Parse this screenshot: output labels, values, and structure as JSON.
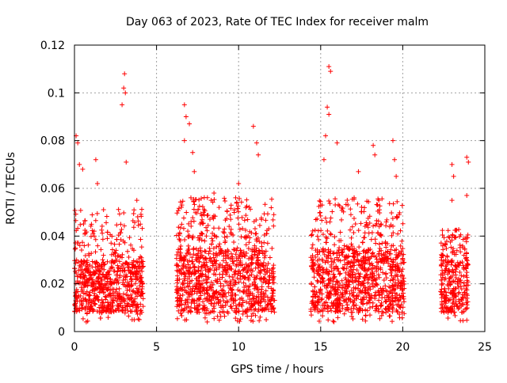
{
  "chart_data": {
    "type": "scatter",
    "title": "Day 063 of 2023, Rate Of TEC Index for receiver malm",
    "xlabel": "GPS time / hours",
    "ylabel": "ROTI / TECUs",
    "xlim": [
      0,
      25
    ],
    "ylim": [
      0,
      0.12
    ],
    "xticks": [
      0,
      5,
      10,
      15,
      20,
      25
    ],
    "xtick_labels": [
      "0",
      "5",
      "10",
      "15",
      "20",
      "25"
    ],
    "yticks": [
      0,
      0.02,
      0.04,
      0.06,
      0.08,
      0.1,
      0.12
    ],
    "ytick_labels": [
      "0",
      "0.02",
      "0.04",
      "0.06",
      "0.08",
      "0.1",
      "0.12"
    ],
    "grid": true,
    "marker": "+",
    "color": "#ff0000",
    "series": [
      {
        "name": "ROTI",
        "segments": [
          {
            "x_range": [
              0.0,
              4.2
            ],
            "typical_range": [
              0.008,
              0.03
            ],
            "upper_envelope": 0.055
          },
          {
            "x_range": [
              6.2,
              12.2
            ],
            "typical_range": [
              0.008,
              0.035
            ],
            "upper_envelope": 0.06
          },
          {
            "x_range": [
              14.4,
              20.1
            ],
            "typical_range": [
              0.008,
              0.035
            ],
            "upper_envelope": 0.06
          },
          {
            "x_range": [
              22.3,
              24.0
            ],
            "typical_range": [
              0.008,
              0.03
            ],
            "upper_envelope": 0.045
          }
        ],
        "notable_points": [
          {
            "x": 0.1,
            "y": 0.082
          },
          {
            "x": 0.2,
            "y": 0.079
          },
          {
            "x": 0.3,
            "y": 0.07
          },
          {
            "x": 0.5,
            "y": 0.068
          },
          {
            "x": 1.3,
            "y": 0.072
          },
          {
            "x": 1.4,
            "y": 0.062
          },
          {
            "x": 2.9,
            "y": 0.095
          },
          {
            "x": 3.0,
            "y": 0.102
          },
          {
            "x": 3.05,
            "y": 0.108
          },
          {
            "x": 3.1,
            "y": 0.1
          },
          {
            "x": 3.15,
            "y": 0.071
          },
          {
            "x": 3.8,
            "y": 0.055
          },
          {
            "x": 6.7,
            "y": 0.095
          },
          {
            "x": 6.8,
            "y": 0.09
          },
          {
            "x": 7.0,
            "y": 0.087
          },
          {
            "x": 6.7,
            "y": 0.08
          },
          {
            "x": 7.2,
            "y": 0.075
          },
          {
            "x": 7.3,
            "y": 0.067
          },
          {
            "x": 10.9,
            "y": 0.086
          },
          {
            "x": 11.1,
            "y": 0.079
          },
          {
            "x": 11.2,
            "y": 0.074
          },
          {
            "x": 10.0,
            "y": 0.062
          },
          {
            "x": 8.5,
            "y": 0.058
          },
          {
            "x": 15.5,
            "y": 0.111
          },
          {
            "x": 15.6,
            "y": 0.109
          },
          {
            "x": 15.4,
            "y": 0.094
          },
          {
            "x": 15.5,
            "y": 0.091
          },
          {
            "x": 15.3,
            "y": 0.082
          },
          {
            "x": 16.0,
            "y": 0.079
          },
          {
            "x": 15.2,
            "y": 0.072
          },
          {
            "x": 18.2,
            "y": 0.078
          },
          {
            "x": 18.3,
            "y": 0.074
          },
          {
            "x": 19.4,
            "y": 0.08
          },
          {
            "x": 19.5,
            "y": 0.072
          },
          {
            "x": 17.3,
            "y": 0.067
          },
          {
            "x": 19.6,
            "y": 0.065
          },
          {
            "x": 23.0,
            "y": 0.07
          },
          {
            "x": 23.1,
            "y": 0.065
          },
          {
            "x": 23.9,
            "y": 0.073
          },
          {
            "x": 24.0,
            "y": 0.071
          },
          {
            "x": 23.0,
            "y": 0.055
          },
          {
            "x": 23.9,
            "y": 0.057
          }
        ]
      }
    ]
  }
}
